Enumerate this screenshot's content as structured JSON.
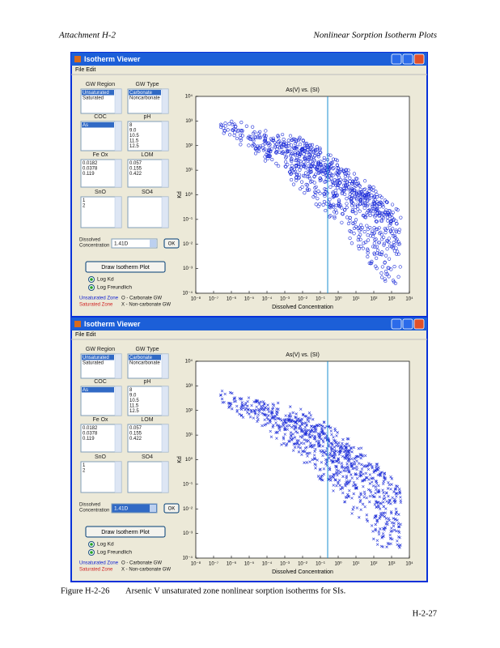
{
  "header": {
    "left": "Attachment H-2",
    "right": "Nonlinear Sorption Isotherm Plots"
  },
  "windows": [
    {
      "title": "Isotherm Viewer",
      "menu": "File Edit",
      "gw_region_label": "GW Region",
      "gw_region_items": [
        "Unsaturated",
        "Saturated"
      ],
      "gw_type_label": "GW Type",
      "gw_type_items": [
        "Carbonate",
        "Noncarbonate"
      ],
      "coc_label": "COC",
      "coc_items": [
        "As"
      ],
      "ph_label": "pH",
      "ph_items": [
        "8",
        "9.0",
        "10.5",
        "11.5",
        "12.5"
      ],
      "feox_label": "Fe Ox",
      "feox_items": [
        "0.0182",
        "0.0378",
        "0.119"
      ],
      "ox_label": "LOM",
      "ox_items": [
        "0.057",
        "0.155",
        "0.422"
      ],
      "sno_label": "SnO",
      "sno_items": [
        "1",
        "2"
      ],
      "so4_label": "SO4",
      "conc_label": [
        "Dissolved",
        "Concentration"
      ],
      "conc_value": "1.41D",
      "ok": "OK",
      "draw_button": "Draw Isotherm Plot",
      "radios": [
        "Log Kd",
        "Log Freundlich"
      ],
      "legend": [
        [
          "Unsaturated Zone",
          "O - Carbonate GW"
        ],
        [
          "Saturated Zone",
          "X - Non-carbonate GW"
        ]
      ],
      "plot_title": "As(V) vs. (SI)",
      "x_label": "Dissolved Concentration",
      "y_label": "Kd",
      "x_ticks": [
        "10⁻⁸",
        "10⁻⁷",
        "10⁻⁶",
        "10⁻⁵",
        "10⁻⁴",
        "10⁻³",
        "10⁻²",
        "10⁻¹",
        "10⁰",
        "10¹",
        "10²",
        "10³",
        "10⁴"
      ],
      "y_ticks": [
        "10⁴",
        "10³",
        "10²",
        "10¹",
        "10⁰",
        "10⁻¹",
        "10⁻²",
        "10⁻³",
        "10⁻⁴"
      ]
    },
    {
      "title": "Isotherm Viewer",
      "menu": "File Edit",
      "gw_region_label": "GW Region",
      "gw_region_items": [
        "Unsaturated",
        "Saturated"
      ],
      "gw_type_label": "GW Type",
      "gw_type_items": [
        "Carbonate",
        "Noncarbonate"
      ],
      "coc_label": "COC",
      "coc_items": [
        "As"
      ],
      "ph_label": "pH",
      "ph_items": [
        "8",
        "9.0",
        "10.5",
        "11.5",
        "12.5"
      ],
      "feox_label": "Fe Ox",
      "feox_items": [
        "0.0182",
        "0.0378",
        "0.119"
      ],
      "ox_label": "LOM",
      "ox_items": [
        "0.057",
        "0.155",
        "0.422"
      ],
      "sno_label": "SnO",
      "sno_items": [
        "1",
        "2"
      ],
      "so4_label": "SO4",
      "conc_label": [
        "Dissolved",
        "Concentration"
      ],
      "conc_value": "1.41D",
      "ok": "OK",
      "draw_button": "Draw Isotherm Plot",
      "radios": [
        "Log Kd",
        "Log Freundlich"
      ],
      "legend": [
        [
          "Unsaturated Zone",
          "O - Carbonate GW"
        ],
        [
          "Saturated Zone",
          "X - Non-carbonate GW"
        ]
      ],
      "plot_title": "As(V) vs. (SI)",
      "x_label": "Dissolved Concentration",
      "y_label": "Kd",
      "x_ticks": [
        "10⁻⁸",
        "10⁻⁷",
        "10⁻⁶",
        "10⁻⁵",
        "10⁻⁴",
        "10⁻³",
        "10⁻²",
        "10⁻¹",
        "10⁰",
        "10¹",
        "10²",
        "10³",
        "10⁴"
      ],
      "y_ticks": [
        "10⁴",
        "10³",
        "10²",
        "10¹",
        "10⁰",
        "10⁻¹",
        "10⁻²",
        "10⁻³",
        "10⁻⁴"
      ]
    }
  ],
  "caption": {
    "label": "Figure H-2-26",
    "text": "Arsenic V unsaturated zone nonlinear sorption isotherms for SIs."
  },
  "page_number": "H-2-27"
}
